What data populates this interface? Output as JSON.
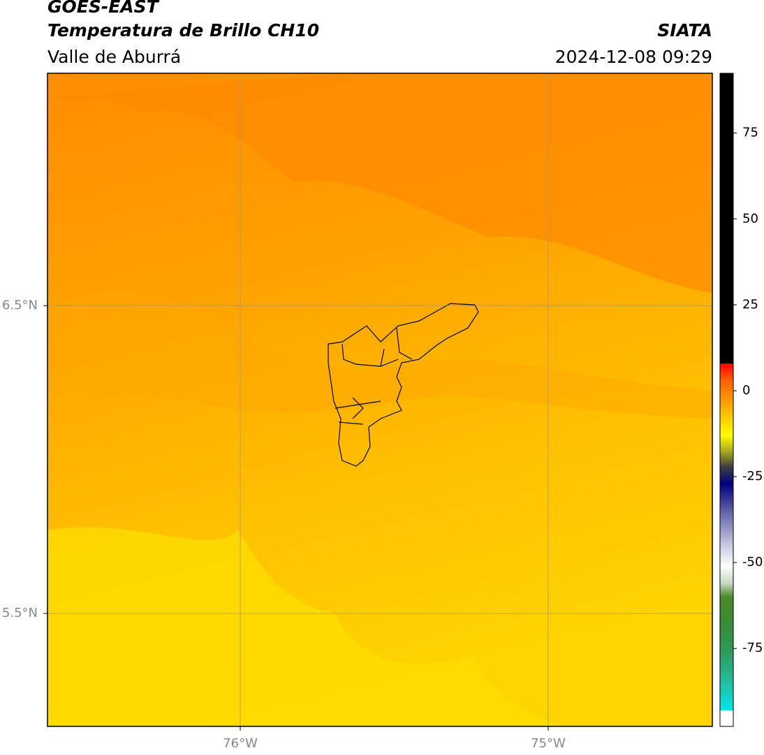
{
  "chart_data": {
    "type": "map",
    "title": "GOES-EAST",
    "subtitle": "Temperatura de Brillo CH10",
    "region": "Valle de Aburrá",
    "source": "SIATA",
    "timestamp": "2024-12-08 09:29",
    "xlim": [
      -76.626,
      -74.467
    ],
    "ylim": [
      5.133,
      7.255
    ],
    "xticks": [
      {
        "value": -76,
        "label": "76°W"
      },
      {
        "value": -75,
        "label": "75°W"
      }
    ],
    "yticks": [
      {
        "value": 6.5,
        "label": "6.5°N"
      },
      {
        "value": 5.5,
        "label": "5.5°N"
      }
    ],
    "grid": true,
    "colorbar": {
      "lim": [
        -97.7,
        92.4
      ],
      "ticks": [
        75,
        50,
        25,
        0,
        -25,
        -50,
        -75
      ],
      "colormap": [
        {
          "value": -97.7,
          "color": "#ffffff"
        },
        {
          "value": -93,
          "color": "#ffffff"
        },
        {
          "value": -93,
          "color": "#00e8e8"
        },
        {
          "value": -85,
          "color": "#20c0a0"
        },
        {
          "value": -76,
          "color": "#2e9a5a"
        },
        {
          "value": -66,
          "color": "#3c8a30"
        },
        {
          "value": -60,
          "color": "#4a8a2a"
        },
        {
          "value": -56,
          "color": "#c8d8c0"
        },
        {
          "value": -51,
          "color": "#ffffff"
        },
        {
          "value": -44,
          "color": "#c0c0dc"
        },
        {
          "value": -35,
          "color": "#6060a8"
        },
        {
          "value": -27,
          "color": "#000080"
        },
        {
          "value": -22,
          "color": "#404040"
        },
        {
          "value": -18,
          "color": "#a0a020"
        },
        {
          "value": -13,
          "color": "#ffff00"
        },
        {
          "value": -5,
          "color": "#ffb000"
        },
        {
          "value": 3,
          "color": "#ff6000"
        },
        {
          "value": 8,
          "color": "#ff0000"
        },
        {
          "value": 8,
          "color": "#000000"
        },
        {
          "value": 92.4,
          "color": "#000000"
        }
      ]
    }
  }
}
